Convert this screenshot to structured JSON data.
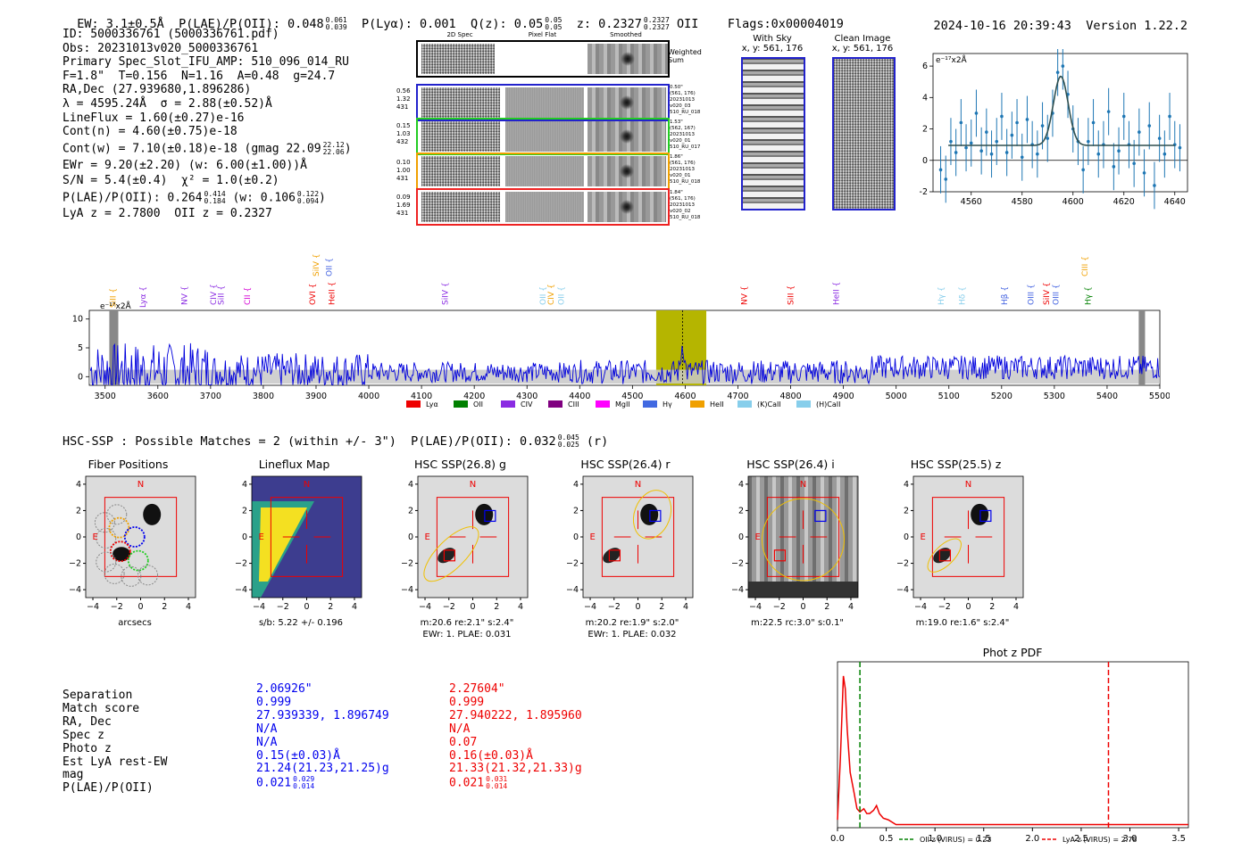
{
  "header": {
    "ew": "EW: 3.1±0.5Å",
    "plae": "P(LAE)/P(OII): 0.048",
    "plae_hi": "0.061",
    "plae_lo": "0.039",
    "plya": "P(Lyα): 0.001",
    "q": "Q(z): 0.05",
    "q_hi": "0.05",
    "q_lo": "0.05",
    "z": "z: 0.2327",
    "z_hi": "0.2327",
    "z_lo": "0.2327",
    "z_line": "OII",
    "flags": "Flags:0x00004019",
    "timestamp": "2024-10-16 20:39:43",
    "version": "Version 1.22.2"
  },
  "info": {
    "l1": "ID: 5000336761 (5000336761.pdf)",
    "l2": "Obs: 20231013v020_5000336761",
    "l3": "Primary Spec_Slot_IFU_AMP: 510_096_014_RU",
    "l4": "F=1.8\"  T=0.156  N=1.16  A=0.48  g=24.7",
    "l5": "RA,Dec (27.939680,1.896286)",
    "l6": "λ = 4595.24Å  σ = 2.88(±0.52)Å",
    "l7": "LineFlux = 1.60(±0.27)e-16",
    "l8": "Cont(n) = 4.60(±0.75)e-18",
    "l9": "Cont(w) = 7.10(±0.18)e-18 (gmag 22.09",
    "l9_hi": "22.12",
    "l9_lo": "22.06",
    "l9_end": ")",
    "l10": "EWr = 9.20(±2.20) (w: 6.00(±1.00))Å",
    "l11": "S/N = 5.4(±0.4)  χ² = 1.0(±0.2)",
    "l12": "P(LAE)/P(OII): 0.264",
    "l12_hi": "0.414",
    "l12_lo": "0.184",
    "l12_w": "(w: 0.106",
    "l12_whi": "0.122",
    "l12_wlo": "0.094",
    "l12_end": ")",
    "l13": "LyA z = 2.7800  OII z = 0.2327"
  },
  "cutouts": {
    "col_titles": [
      "2D Spec",
      "Pixel Flat",
      "Smoothed"
    ],
    "weighted_sum": "Weighted Sum",
    "rows": [
      {
        "w1": "0.56",
        "w2": "1.32",
        "w3": "431",
        "note": [
          "0.50\"",
          "(561, 176)",
          "20231013",
          "v020_03",
          "510_RU_018"
        ]
      },
      {
        "w1": "0.15",
        "w2": "1.03",
        "w3": "432",
        "note": [
          "1.53\"",
          "(562, 167)",
          "20231013",
          "v020_01",
          "510_RU_017"
        ]
      },
      {
        "w1": "0.10",
        "w2": "1.00",
        "w3": "431",
        "note": [
          "1.86\"",
          "(561, 176)",
          "20231013",
          "v020_01",
          "510_RU_018"
        ]
      },
      {
        "w1": "0.09",
        "w2": "1.69",
        "w3": "431",
        "note": [
          "1.84\"",
          "(561, 176)",
          "20231013",
          "v020_02",
          "510_RU_018"
        ]
      }
    ]
  },
  "sky": {
    "with_sky_title": "With Sky",
    "with_sky_coord": "x, y: 561, 176",
    "clean_title": "Clean Image",
    "clean_coord": "x, y: 561, 176"
  },
  "hsc": {
    "title": "HSC-SSP : Possible Matches = 2 (within +/- 3\")  P(LAE)/P(OII): 0.032",
    "hi": "0.045",
    "lo": "0.025",
    "band": "(r)",
    "panels": [
      {
        "title": "Fiber Positions",
        "cap1": "arcsecs",
        "cap2": ""
      },
      {
        "title": "Lineflux Map",
        "cap1": "s/b: 5.22 +/- 0.196",
        "cap2": ""
      },
      {
        "title": "HSC SSP(26.8) g",
        "cap1": "m:20.6  re:2.1\"  s:2.4\"",
        "cap2": "EWr: 1. PLAE: 0.031"
      },
      {
        "title": "HSC SSP(26.4) r",
        "cap1": "m:20.2  re:1.9\"  s:2.0\"",
        "cap2": "EWr: 1. PLAE: 0.032"
      },
      {
        "title": "HSC SSP(26.4) i",
        "cap1": "m:22.5 rc:3.0\"  s:0.1\"",
        "cap2": ""
      },
      {
        "title": "HSC SSP(25.5) z",
        "cap1": "m:19.0  re:1.6\"  s:2.4\"",
        "cap2": ""
      }
    ],
    "cutout_label_N": "N",
    "cutout_label_E": "E"
  },
  "matches": {
    "labels": [
      "Separation",
      "Match score",
      "RA, Dec",
      "Spec z",
      "Photo z",
      "Est LyA rest-EW",
      "mag",
      "P(LAE)/P(OII)"
    ],
    "blue": [
      "2.06926\"",
      "0.999",
      "27.939339, 1.896749",
      "N/A",
      "N/A",
      "0.15(±0.03)Å",
      "21.24(21.23,21.25)g",
      "0.021"
    ],
    "blue_hi": "0.029",
    "blue_lo": "0.014",
    "red": [
      "2.27604\"",
      "0.999",
      "27.940222, 1.895960",
      "N/A",
      "0.07",
      "0.16(±0.03)Å",
      "21.33(21.32,21.33)g",
      "0.021"
    ],
    "red_hi": "0.031",
    "red_lo": "0.014"
  },
  "colors": {
    "blue": "#0000ee",
    "red": "#ee0000",
    "olive": "#b5b500"
  },
  "chart_data": [
    {
      "type": "line",
      "title": "",
      "ylabel": "e⁻¹⁷x2Å",
      "xlabel": "",
      "xlim": [
        4545,
        4645
      ],
      "ylim": [
        -2,
        6.8
      ],
      "xticks": [
        4560,
        4580,
        4600,
        4620,
        4640
      ],
      "yticks": [
        -2,
        0,
        2,
        4,
        6
      ],
      "series": [
        {
          "name": "data",
          "x": [
            4548,
            4550,
            4552,
            4554,
            4556,
            4558,
            4560,
            4562,
            4564,
            4566,
            4568,
            4570,
            4572,
            4574,
            4576,
            4578,
            4580,
            4582,
            4584,
            4586,
            4588,
            4590,
            4592,
            4594,
            4596,
            4598,
            4600,
            4602,
            4604,
            4606,
            4608,
            4610,
            4612,
            4614,
            4616,
            4618,
            4620,
            4622,
            4624,
            4626,
            4628,
            4630,
            4632,
            4634,
            4636,
            4638,
            4640,
            4642
          ],
          "y": [
            -0.6,
            -1.2,
            1.2,
            0.5,
            2.4,
            0.8,
            1.1,
            3.0,
            0.6,
            1.8,
            0.4,
            1.2,
            2.8,
            0.5,
            1.6,
            2.4,
            0.2,
            2.6,
            1.0,
            0.4,
            2.2,
            1.4,
            3.0,
            5.6,
            6.0,
            4.2,
            2.0,
            1.2,
            -0.6,
            1.2,
            2.4,
            0.4,
            1.0,
            3.1,
            -0.4,
            0.6,
            2.8,
            1.0,
            -0.2,
            1.8,
            -0.8,
            2.2,
            -1.6,
            1.4,
            0.4,
            2.8,
            1.0,
            0.8
          ],
          "err": 1.5
        },
        {
          "name": "fit",
          "center": 4595.2,
          "sigma": 2.9,
          "amp": 4.4,
          "continuum": 0.95
        }
      ]
    },
    {
      "type": "line",
      "title": "",
      "ylabel": "e⁻¹⁷x2Å",
      "xlim": [
        3470,
        5500
      ],
      "ylim": [
        -1.5,
        11.5
      ],
      "xticks": [
        3500,
        3600,
        3700,
        3800,
        3900,
        4000,
        4100,
        4200,
        4300,
        4400,
        4500,
        4600,
        4700,
        4800,
        4900,
        5000,
        5100,
        5200,
        5300,
        5400,
        5500
      ],
      "yticks": [
        0,
        5,
        10
      ],
      "highlight_band": [
        4545,
        4640
      ],
      "line_center": 4595.2,
      "lines": [
        {
          "label": "SiII",
          "x": 3515,
          "color": "#f0a000",
          "row": 2
        },
        {
          "label": "Lyα",
          "x": 3572,
          "color": "#8a2be2",
          "row": 2
        },
        {
          "label": "NV",
          "x": 3650,
          "color": "#8a2be2",
          "row": 1
        },
        {
          "label": "CIV",
          "x": 3705,
          "color": "#8a2be2",
          "row": 1
        },
        {
          "label": "SiII",
          "x": 3720,
          "color": "#8a2be2",
          "row": 1
        },
        {
          "label": "CII",
          "x": 3770,
          "color": "#d400d4",
          "row": 1
        },
        {
          "label": "SiIV",
          "x": 3900,
          "color": "#f0a000",
          "row": 0
        },
        {
          "label": "OII",
          "x": 3925,
          "color": "#4060e0",
          "row": 0
        },
        {
          "label": "OVI",
          "x": 3893,
          "color": "#ee0000",
          "row": 1
        },
        {
          "label": "HeII",
          "x": 3930,
          "color": "#ee0000",
          "row": 1
        },
        {
          "label": "SiIV",
          "x": 4145,
          "color": "#8a2be2",
          "row": 1
        },
        {
          "label": "OII",
          "x": 4330,
          "color": "#87ceeb",
          "row": 1
        },
        {
          "label": "CIV",
          "x": 4345,
          "color": "#f0a000",
          "row": 1
        },
        {
          "label": "OII",
          "x": 4365,
          "color": "#87ceeb",
          "row": 1
        },
        {
          "label": "NV",
          "x": 4712,
          "color": "#ee0000",
          "row": 1
        },
        {
          "label": "SiII",
          "x": 4800,
          "color": "#ee0000",
          "row": 1
        },
        {
          "label": "HeII",
          "x": 4886,
          "color": "#8a2be2",
          "row": 1
        },
        {
          "label": "Hγ",
          "x": 5085,
          "color": "#87ceeb",
          "row": 1
        },
        {
          "label": "Hδ",
          "x": 5125,
          "color": "#87ceeb",
          "row": 1
        },
        {
          "label": "Hβ",
          "x": 5205,
          "color": "#4060e0",
          "row": 1
        },
        {
          "label": "OIII",
          "x": 5255,
          "color": "#4060e0",
          "row": 1
        },
        {
          "label": "SiIV",
          "x": 5285,
          "color": "#ee0000",
          "row": 1
        },
        {
          "label": "OIII",
          "x": 5303,
          "color": "#4060e0",
          "row": 1
        },
        {
          "label": "CIII",
          "x": 5358,
          "color": "#f0a000",
          "row": 0
        },
        {
          "label": "Hγ",
          "x": 5364,
          "color": "#008000",
          "row": 1
        }
      ],
      "legend": [
        {
          "label": "Lyα",
          "color": "#ee0000"
        },
        {
          "label": "OII",
          "color": "#008000"
        },
        {
          "label": "CIV",
          "color": "#8a2be2"
        },
        {
          "label": "CIII",
          "color": "#800080"
        },
        {
          "label": "MgII",
          "color": "#ff00ff"
        },
        {
          "label": "Hγ",
          "color": "#4169e1"
        },
        {
          "label": "HeII",
          "color": "#f0a000"
        },
        {
          "label": "(K)CaII",
          "color": "#87ceeb"
        },
        {
          "label": "(H)CaII",
          "color": "#87ceeb"
        }
      ]
    },
    {
      "type": "line",
      "title": "Phot z PDF",
      "xlim": [
        0.0,
        3.6
      ],
      "ylim": [
        0,
        1.05
      ],
      "xticks": [
        0.0,
        0.5,
        1.0,
        1.5,
        2.0,
        2.5,
        3.0,
        3.5
      ],
      "series": [
        {
          "name": "pdf",
          "x": [
            0.0,
            0.03,
            0.06,
            0.08,
            0.1,
            0.13,
            0.17,
            0.2,
            0.23,
            0.27,
            0.3,
            0.33,
            0.37,
            0.4,
            0.43,
            0.47,
            0.52,
            0.6,
            0.8,
            1.0,
            2.0,
            3.6
          ],
          "y": [
            0.05,
            0.45,
            0.96,
            0.88,
            0.62,
            0.35,
            0.22,
            0.12,
            0.1,
            0.12,
            0.09,
            0.09,
            0.11,
            0.14,
            0.09,
            0.06,
            0.05,
            0.02,
            0.02,
            0.02,
            0.02,
            0.02
          ]
        }
      ],
      "vlines": [
        {
          "x": 0.23,
          "color": "#008000",
          "label": "OII z (VIRUS) = 0.23"
        },
        {
          "x": 2.78,
          "color": "#ee0000",
          "label": "LyA z (VIRUS) = 2.78"
        }
      ]
    }
  ]
}
